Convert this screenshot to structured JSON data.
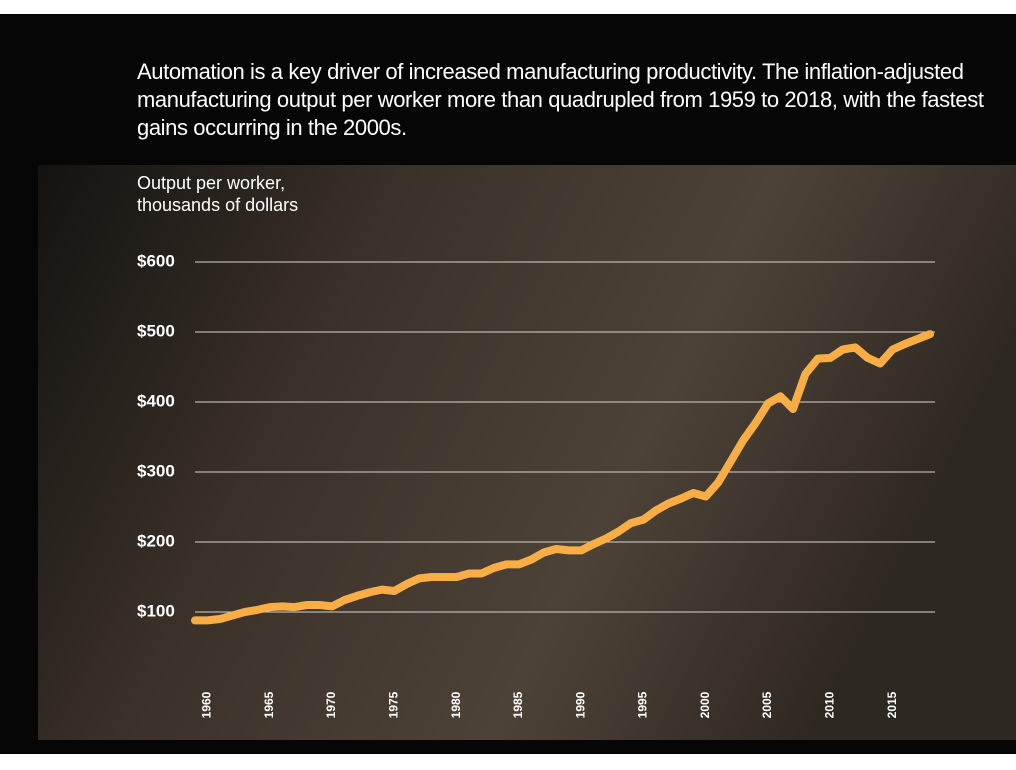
{
  "chart_data": {
    "type": "line",
    "title": "Automation is a key driver of increased manufacturing productivity. The inflation-adjusted manufacturing output per worker more than quadrupled from 1959 to 2018, with the fastest gains occurring in the 2000s.",
    "y_label": "Output per worker, thousands of dollars",
    "x": [
      1959,
      1960,
      1961,
      1962,
      1963,
      1964,
      1965,
      1966,
      1967,
      1968,
      1969,
      1970,
      1971,
      1972,
      1973,
      1974,
      1975,
      1976,
      1977,
      1978,
      1979,
      1980,
      1981,
      1982,
      1983,
      1984,
      1985,
      1986,
      1987,
      1988,
      1989,
      1990,
      1991,
      1992,
      1993,
      1994,
      1995,
      1996,
      1997,
      1998,
      1999,
      2000,
      2001,
      2002,
      2003,
      2004,
      2005,
      2006,
      2007,
      2008,
      2009,
      2010,
      2011,
      2012,
      2013,
      2014,
      2015,
      2016,
      2017,
      2018
    ],
    "values": [
      88,
      88,
      90,
      95,
      100,
      103,
      107,
      108,
      107,
      110,
      110,
      108,
      117,
      123,
      128,
      132,
      130,
      140,
      148,
      150,
      150,
      150,
      155,
      155,
      163,
      168,
      168,
      175,
      185,
      190,
      188,
      188,
      197,
      205,
      215,
      227,
      232,
      245,
      255,
      262,
      270,
      265,
      285,
      315,
      345,
      370,
      398,
      408,
      390,
      440,
      462,
      463,
      475,
      478,
      463,
      455,
      475,
      483,
      490,
      497
    ],
    "color": "#f9ae45",
    "xlim": [
      1959,
      2018
    ],
    "xticks": [
      1960,
      1965,
      1970,
      1975,
      1980,
      1985,
      1990,
      1995,
      2000,
      2005,
      2010,
      2015
    ],
    "ylim": [
      0,
      600
    ],
    "yticks": [
      {
        "value": 100,
        "label": "$100"
      },
      {
        "value": 200,
        "label": "$200"
      },
      {
        "value": 300,
        "label": "$300"
      },
      {
        "value": 400,
        "label": "$400"
      },
      {
        "value": 500,
        "label": "$500"
      },
      {
        "value": 600,
        "label": "$600"
      }
    ],
    "grid": true
  }
}
